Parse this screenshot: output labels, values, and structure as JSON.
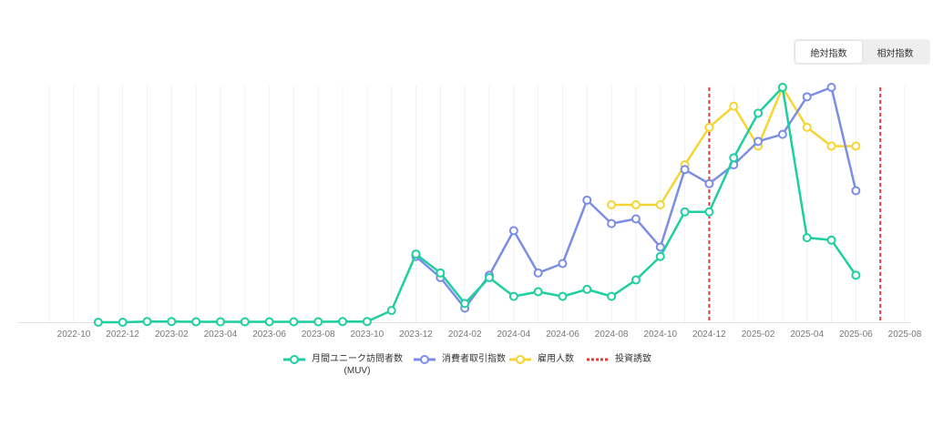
{
  "toggle": {
    "absolute_label": "絶対指数",
    "relative_label": "相対指数",
    "active": "absolute"
  },
  "chart_data": {
    "type": "line",
    "x_ticks": [
      "2022-10",
      "2022-12",
      "2023-02",
      "2023-04",
      "2023-06",
      "2023-08",
      "2023-10",
      "2023-12",
      "2024-02",
      "2024-04",
      "2024-06",
      "2024-08",
      "2024-10",
      "2024-12",
      "2025-02",
      "2025-04",
      "2025-06",
      "2025-08"
    ],
    "x_range": [
      "2022-10",
      "2025-08"
    ],
    "y_range": [
      0,
      100
    ],
    "grid": "vertical",
    "legend_position": "bottom",
    "series": [
      {
        "name": "月間ユニーク訪問者数",
        "name_sub": "(MUV)",
        "color": "#1ecfa0",
        "x": [
          "2022-11",
          "2022-12",
          "2023-01",
          "2023-02",
          "2023-03",
          "2023-04",
          "2023-05",
          "2023-06",
          "2023-07",
          "2023-08",
          "2023-09",
          "2023-10",
          "2023-11",
          "2023-12",
          "2024-01",
          "2024-02",
          "2024-03",
          "2024-04",
          "2024-05",
          "2024-06",
          "2024-07",
          "2024-08",
          "2024-09",
          "2024-10",
          "2024-11",
          "2024-12",
          "2025-01",
          "2025-02",
          "2025-03",
          "2025-04",
          "2025-05",
          "2025-06"
        ],
        "values": [
          0,
          0,
          0.3,
          0.3,
          0.2,
          0.2,
          0.2,
          0.2,
          0.2,
          0.2,
          0.3,
          0.3,
          5,
          29,
          21,
          8,
          19,
          11,
          13,
          11,
          14,
          11,
          18,
          28,
          47,
          47,
          70,
          89,
          100,
          36,
          35,
          20
        ]
      },
      {
        "name": "消費者取引指数",
        "color": "#7b8de4",
        "x": [
          "2023-12",
          "2024-01",
          "2024-02",
          "2024-03",
          "2024-04",
          "2024-05",
          "2024-06",
          "2024-07",
          "2024-08",
          "2024-09",
          "2024-10",
          "2024-11",
          "2024-12",
          "2025-01",
          "2025-02",
          "2025-03",
          "2025-04",
          "2025-05",
          "2025-06"
        ],
        "values": [
          28,
          19,
          6,
          20,
          39,
          21,
          25,
          52,
          42,
          44,
          32,
          65,
          59,
          67,
          77,
          80,
          96,
          100,
          56
        ]
      },
      {
        "name": "雇用人数",
        "color": "#f5d533",
        "x": [
          "2024-08",
          "2024-09",
          "2024-10",
          "2024-11",
          "2024-12",
          "2025-01",
          "2025-02",
          "2025-03",
          "2025-04",
          "2025-05",
          "2025-06"
        ],
        "values": [
          50,
          50,
          50,
          67,
          83,
          92,
          75,
          100,
          83,
          75,
          75
        ]
      },
      {
        "name": "投資誘致",
        "color": "#e03c3c",
        "type": "event_lines",
        "x": [
          "2024-12",
          "2025-07"
        ]
      }
    ]
  }
}
